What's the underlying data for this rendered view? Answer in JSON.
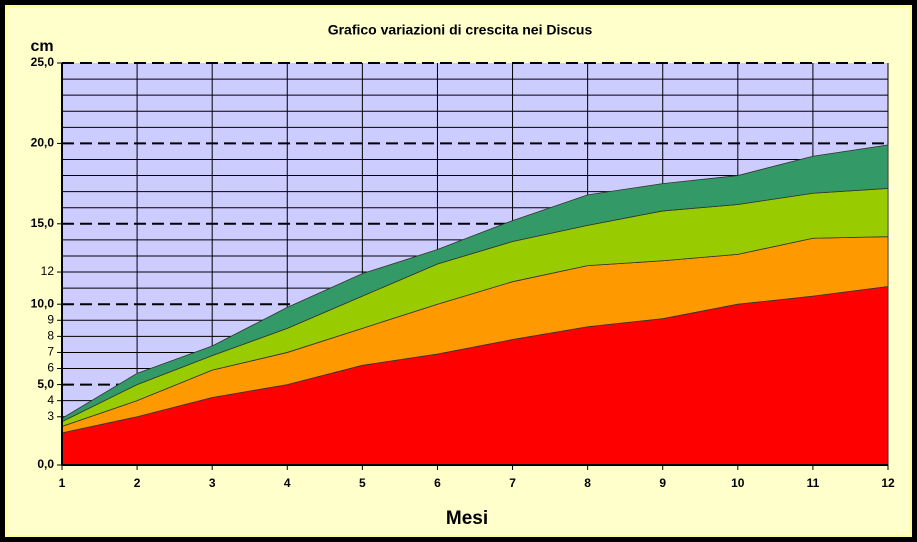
{
  "chart_data": {
    "type": "area",
    "stacked": true,
    "title": "Grafico variazioni di crescita nei Discus",
    "y_label": "cm",
    "x_label": "Mesi",
    "x": [
      1,
      2,
      3,
      4,
      5,
      6,
      7,
      8,
      9,
      10,
      11,
      12
    ],
    "series": [
      {
        "color": "#ff0000",
        "values": [
          2.0,
          3.0,
          4.2,
          5.0,
          6.2,
          6.9,
          7.8,
          8.6,
          9.1,
          10.0,
          10.5,
          11.1
        ]
      },
      {
        "color": "#ff9900",
        "values": [
          0.4,
          1.0,
          1.7,
          2.0,
          2.3,
          3.1,
          3.6,
          3.8,
          3.6,
          3.1,
          3.6,
          3.1
        ]
      },
      {
        "color": "#99cc00",
        "values": [
          0.3,
          1.0,
          0.9,
          1.5,
          2.0,
          2.5,
          2.5,
          2.5,
          3.1,
          3.1,
          2.8,
          3.0
        ]
      },
      {
        "color": "#339966",
        "values": [
          0.2,
          0.7,
          0.6,
          1.3,
          1.4,
          0.9,
          1.3,
          1.9,
          1.7,
          1.8,
          2.3,
          2.7
        ]
      }
    ],
    "xlim": [
      1,
      12
    ],
    "xticks": [
      1,
      2,
      3,
      4,
      5,
      6,
      7,
      8,
      9,
      10,
      11,
      12
    ],
    "ylim": [
      0,
      25
    ],
    "yticks": [
      {
        "value": 0,
        "label": "0,0"
      },
      3,
      4,
      {
        "value": 5,
        "label": "5,0"
      },
      6,
      7,
      8,
      9,
      {
        "value": 10,
        "label": "10,0"
      },
      12,
      {
        "value": 15,
        "label": "15,0"
      },
      {
        "value": 20,
        "label": "20,0"
      },
      {
        "value": 25,
        "label": "25,0"
      }
    ],
    "yminor": [
      1,
      2,
      11,
      13,
      14,
      16,
      17,
      18,
      19,
      21,
      22,
      23,
      24
    ],
    "grid": true,
    "plot_background": "#ccccff"
  }
}
